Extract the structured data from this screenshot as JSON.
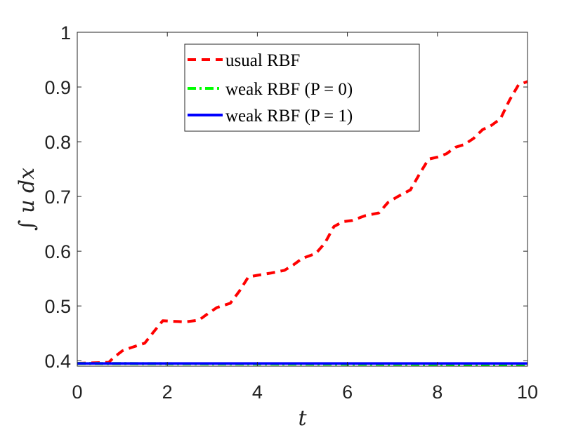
{
  "chart_data": {
    "type": "line",
    "xlabel": "t",
    "ylabel": "∫ u dx",
    "xlim": [
      0,
      10
    ],
    "ylim": [
      0.39,
      1
    ],
    "xticks": [
      0,
      2,
      4,
      6,
      8,
      10
    ],
    "yticks": [
      0.4,
      0.5,
      0.6,
      0.7,
      0.8,
      0.9,
      1
    ],
    "ytick_labels": [
      "0.4",
      "0.5",
      "0.6",
      "0.7",
      "0.8",
      "0.9",
      "1"
    ],
    "grid": false,
    "legend_position": "top-center",
    "series": [
      {
        "name": "usual RBF",
        "color": "#ff0000",
        "style": "dashed",
        "x": [
          0,
          0.7,
          0.8,
          1.0,
          1.2,
          1.5,
          1.7,
          1.9,
          2.1,
          2.4,
          2.7,
          2.9,
          3.1,
          3.4,
          3.6,
          3.8,
          4.0,
          4.3,
          4.6,
          4.8,
          5.0,
          5.3,
          5.5,
          5.7,
          5.9,
          6.1,
          6.4,
          6.7,
          6.9,
          7.1,
          7.4,
          7.6,
          7.8,
          8.0,
          8.2,
          8.4,
          8.6,
          8.8,
          9.0,
          9.2,
          9.4,
          9.6,
          9.8,
          10.0
        ],
        "y": [
          0.395,
          0.397,
          0.405,
          0.418,
          0.424,
          0.432,
          0.453,
          0.473,
          0.472,
          0.471,
          0.474,
          0.486,
          0.497,
          0.505,
          0.527,
          0.553,
          0.556,
          0.56,
          0.565,
          0.575,
          0.587,
          0.596,
          0.615,
          0.645,
          0.654,
          0.656,
          0.665,
          0.67,
          0.689,
          0.699,
          0.712,
          0.741,
          0.768,
          0.772,
          0.778,
          0.79,
          0.795,
          0.806,
          0.822,
          0.83,
          0.842,
          0.876,
          0.904,
          0.91
        ]
      },
      {
        "name": "weak RBF (P = 0)",
        "color": "#00ff00",
        "style": "dashdot",
        "x": [
          0,
          10
        ],
        "y": [
          0.395,
          0.393
        ]
      },
      {
        "name": "weak RBF (P = 1)",
        "color": "#0000ff",
        "style": "solid",
        "x": [
          0,
          10
        ],
        "y": [
          0.395,
          0.395
        ]
      }
    ]
  }
}
